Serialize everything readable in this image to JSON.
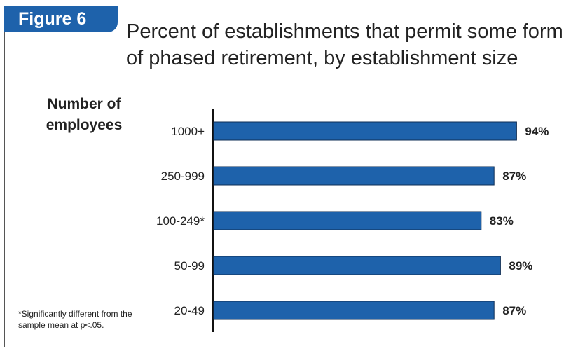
{
  "figure_label": "Figure 6",
  "footnote": "*Significantly different from the sample mean at p<.05.",
  "colors": {
    "accent": "#1e62ab",
    "bar": "#1e62ab",
    "bar_border": "#0d2d55"
  },
  "chart_data": {
    "type": "bar",
    "orientation": "horizontal",
    "title": "Percent of establishments that permit some form of phased retirement, by establishment size",
    "ylabel": "Number of employees",
    "xlabel": "",
    "categories": [
      "1000+",
      "250-999",
      "100-249*",
      "50-99",
      "20-49"
    ],
    "values": [
      94,
      87,
      83,
      89,
      87
    ],
    "data_labels": [
      "94%",
      "87%",
      "83%",
      "89%",
      "87%"
    ],
    "xlim": [
      0,
      100
    ],
    "grid": false,
    "legend": "none"
  }
}
